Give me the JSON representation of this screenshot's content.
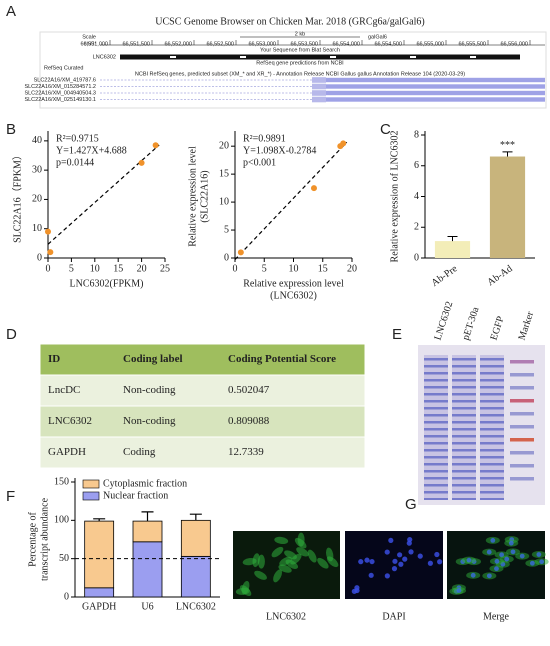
{
  "panel_labels": [
    "A",
    "B",
    "C",
    "D",
    "E",
    "F",
    "G"
  ],
  "genome_browser": {
    "title": "UCSC Genome Browser on Chicken Mar. 2018 (GRCg6a/galGal6)",
    "scale_label": "Scale",
    "chrom_label": "chr3:",
    "scale_bar": "2 kb",
    "assembly": "galGal6",
    "positions": [
      "66,551,000",
      "66,551,500",
      "66,552,000",
      "66,552,500",
      "66,553,000",
      "66,553,500",
      "66,554,000",
      "66,554,500",
      "66,555,000",
      "66,555,500",
      "66,556,000"
    ],
    "blat_track": "Your Sequence from Blat Search",
    "blat_hit": "LNC6302",
    "refseq_track": "RefSeq gene predictions from NCBI",
    "refseq_curated": "RefSeq Curated",
    "predicted_track": "NCBI RefSeq genes, predicted subset (XM_* and XR_*) - Annotation Release NCBI Gallus gallus Annotation Release 104 (2020-03-29)",
    "transcripts": [
      "SLC22A16/XM_419787.6",
      "SLC22A16/XM_015284571.2",
      "SLC22A16/XM_004940504.3",
      "SLC22A16/XM_025149130.1"
    ]
  },
  "chart_data": [
    {
      "type": "scatter",
      "xlabel": "LNC6302(FPKM)",
      "ylabel": [
        "SLC22A16（FPKM）"
      ],
      "x": [
        0,
        0.5,
        20,
        23
      ],
      "y": [
        9,
        2,
        32.5,
        38.5
      ],
      "color": "#f0922a",
      "fit": {
        "slope": 1.427,
        "intercept": 4.688
      },
      "annotations": [
        "R²=0.9715",
        "Y=1.427X+4.688",
        "p=0.0144"
      ],
      "xlim": [
        0,
        25
      ],
      "ylim": [
        0,
        42
      ],
      "xticks": [
        0,
        5,
        10,
        15,
        20,
        25
      ],
      "yticks": [
        0,
        10,
        20,
        30,
        40
      ]
    },
    {
      "type": "scatter",
      "xlabel": [
        "Relative expression level",
        "(LNC6302)"
      ],
      "ylabel": [
        "Relative expression level",
        "(SLC22A16)"
      ],
      "x": [
        1,
        13.5,
        18,
        18.5
      ],
      "y": [
        1,
        12.5,
        20,
        20.5
      ],
      "color": "#f0922a",
      "fit": {
        "slope": 1.098,
        "intercept": -0.2784
      },
      "annotations": [
        "R²=0.9891",
        "Y=1.098X-0.2784",
        "p<0.001"
      ],
      "xlim": [
        0,
        20
      ],
      "ylim": [
        0,
        22
      ],
      "xticks": [
        0,
        5,
        10,
        15,
        20
      ],
      "yticks": [
        0,
        5,
        10,
        15,
        20
      ]
    },
    {
      "type": "bar",
      "ylabel": [
        "Relative expression of LNC6302"
      ],
      "categories": [
        "Ab-Pre",
        "Ab-Ad"
      ],
      "values": [
        1.1,
        6.6
      ],
      "errors": [
        0.3,
        0.3
      ],
      "colors": [
        "#f3edb8",
        "#c8b47c"
      ],
      "annotation": "***",
      "ylim": [
        0,
        8
      ],
      "yticks": [
        0,
        2,
        4,
        6,
        8
      ]
    },
    {
      "type": "stacked_bar",
      "ylabel": [
        "Percentage of",
        "transcript abundance"
      ],
      "categories": [
        "GAPDH",
        "U6",
        "LNC6302"
      ],
      "series": [
        {
          "name": "Nuclear fraction",
          "color": "#9b9ef0",
          "values": [
            12,
            72,
            53
          ],
          "errors": [
            3,
            18,
            8
          ]
        },
        {
          "name": "Cytoplasmic fraction",
          "color": "#f8c98f",
          "values": [
            87,
            27,
            47
          ],
          "errors": [
            3,
            12,
            8
          ]
        }
      ],
      "reference_line": 50,
      "ylim": [
        0,
        150
      ],
      "yticks": [
        0,
        50,
        100,
        150
      ]
    }
  ],
  "table": {
    "header": [
      "ID",
      "Coding label",
      "Coding Potential Score"
    ],
    "rows": [
      [
        "LncDC",
        "Non-coding",
        "0.502047"
      ],
      [
        "LNC6302",
        "Non-coding",
        "0.809088"
      ],
      [
        "GAPDH",
        "Coding",
        "12.7339"
      ]
    ]
  },
  "gel": {
    "lanes": [
      "LNC6302",
      "pET-30a",
      "EGFP",
      "Marker"
    ]
  },
  "fluorescence": {
    "labels": [
      "LNC6302",
      "DAPI",
      "Merge"
    ]
  }
}
